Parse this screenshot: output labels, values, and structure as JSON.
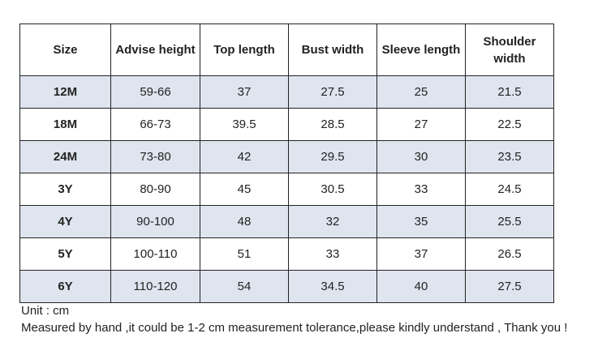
{
  "table": {
    "header": [
      "Size",
      "Advise height",
      "Top length",
      "Bust width",
      "Sleeve length",
      "Shoulder width"
    ],
    "rows": [
      [
        "12M",
        "59-66",
        "37",
        "27.5",
        "25",
        "21.5"
      ],
      [
        "18M",
        "66-73",
        "39.5",
        "28.5",
        "27",
        "22.5"
      ],
      [
        "24M",
        "73-80",
        "42",
        "29.5",
        "30",
        "23.5"
      ],
      [
        "3Y",
        "80-90",
        "45",
        "30.5",
        "33",
        "24.5"
      ],
      [
        "4Y",
        "90-100",
        "48",
        "32",
        "35",
        "25.5"
      ],
      [
        "5Y",
        "100-110",
        "51",
        "33",
        "37",
        "26.5"
      ],
      [
        "6Y",
        "110-120",
        "54",
        "34.5",
        "40",
        "27.5"
      ]
    ]
  },
  "notes": [
    "Unit : cm",
    "Measured by hand ,it could be 1-2 cm measurement tolerance,please kindly understand , Thank you !"
  ]
}
